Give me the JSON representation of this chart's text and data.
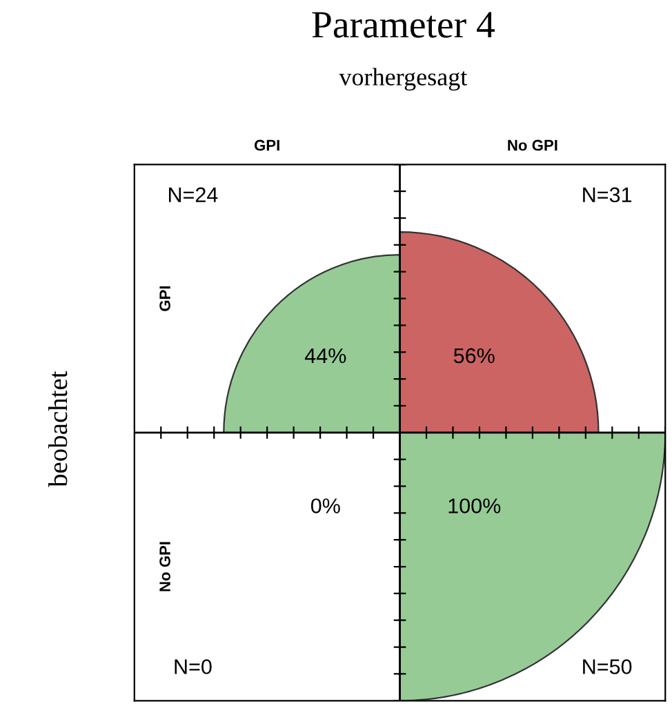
{
  "chart_data": {
    "type": "other",
    "title": "Parameter 4",
    "subtitle": "vorhergesagt",
    "ylabel": "beobachtet",
    "categories": [
      "GPI",
      "No GPI"
    ],
    "y_categories": [
      "GPI",
      "No GPI"
    ],
    "series": [
      {
        "values": [
          44,
          56
        ],
        "value_labels": [
          "44%",
          "56%"
        ],
        "colors": [
          "#96cb96",
          "#cc6464"
        ]
      },
      {
        "values": [
          0,
          100
        ],
        "value_labels": [
          "0%",
          "100%"
        ],
        "colors": [
          "#96cb96",
          "#96cb96"
        ]
      }
    ],
    "annotations": [
      "N=24",
      "N=31",
      "N=0",
      "N=50"
    ]
  }
}
